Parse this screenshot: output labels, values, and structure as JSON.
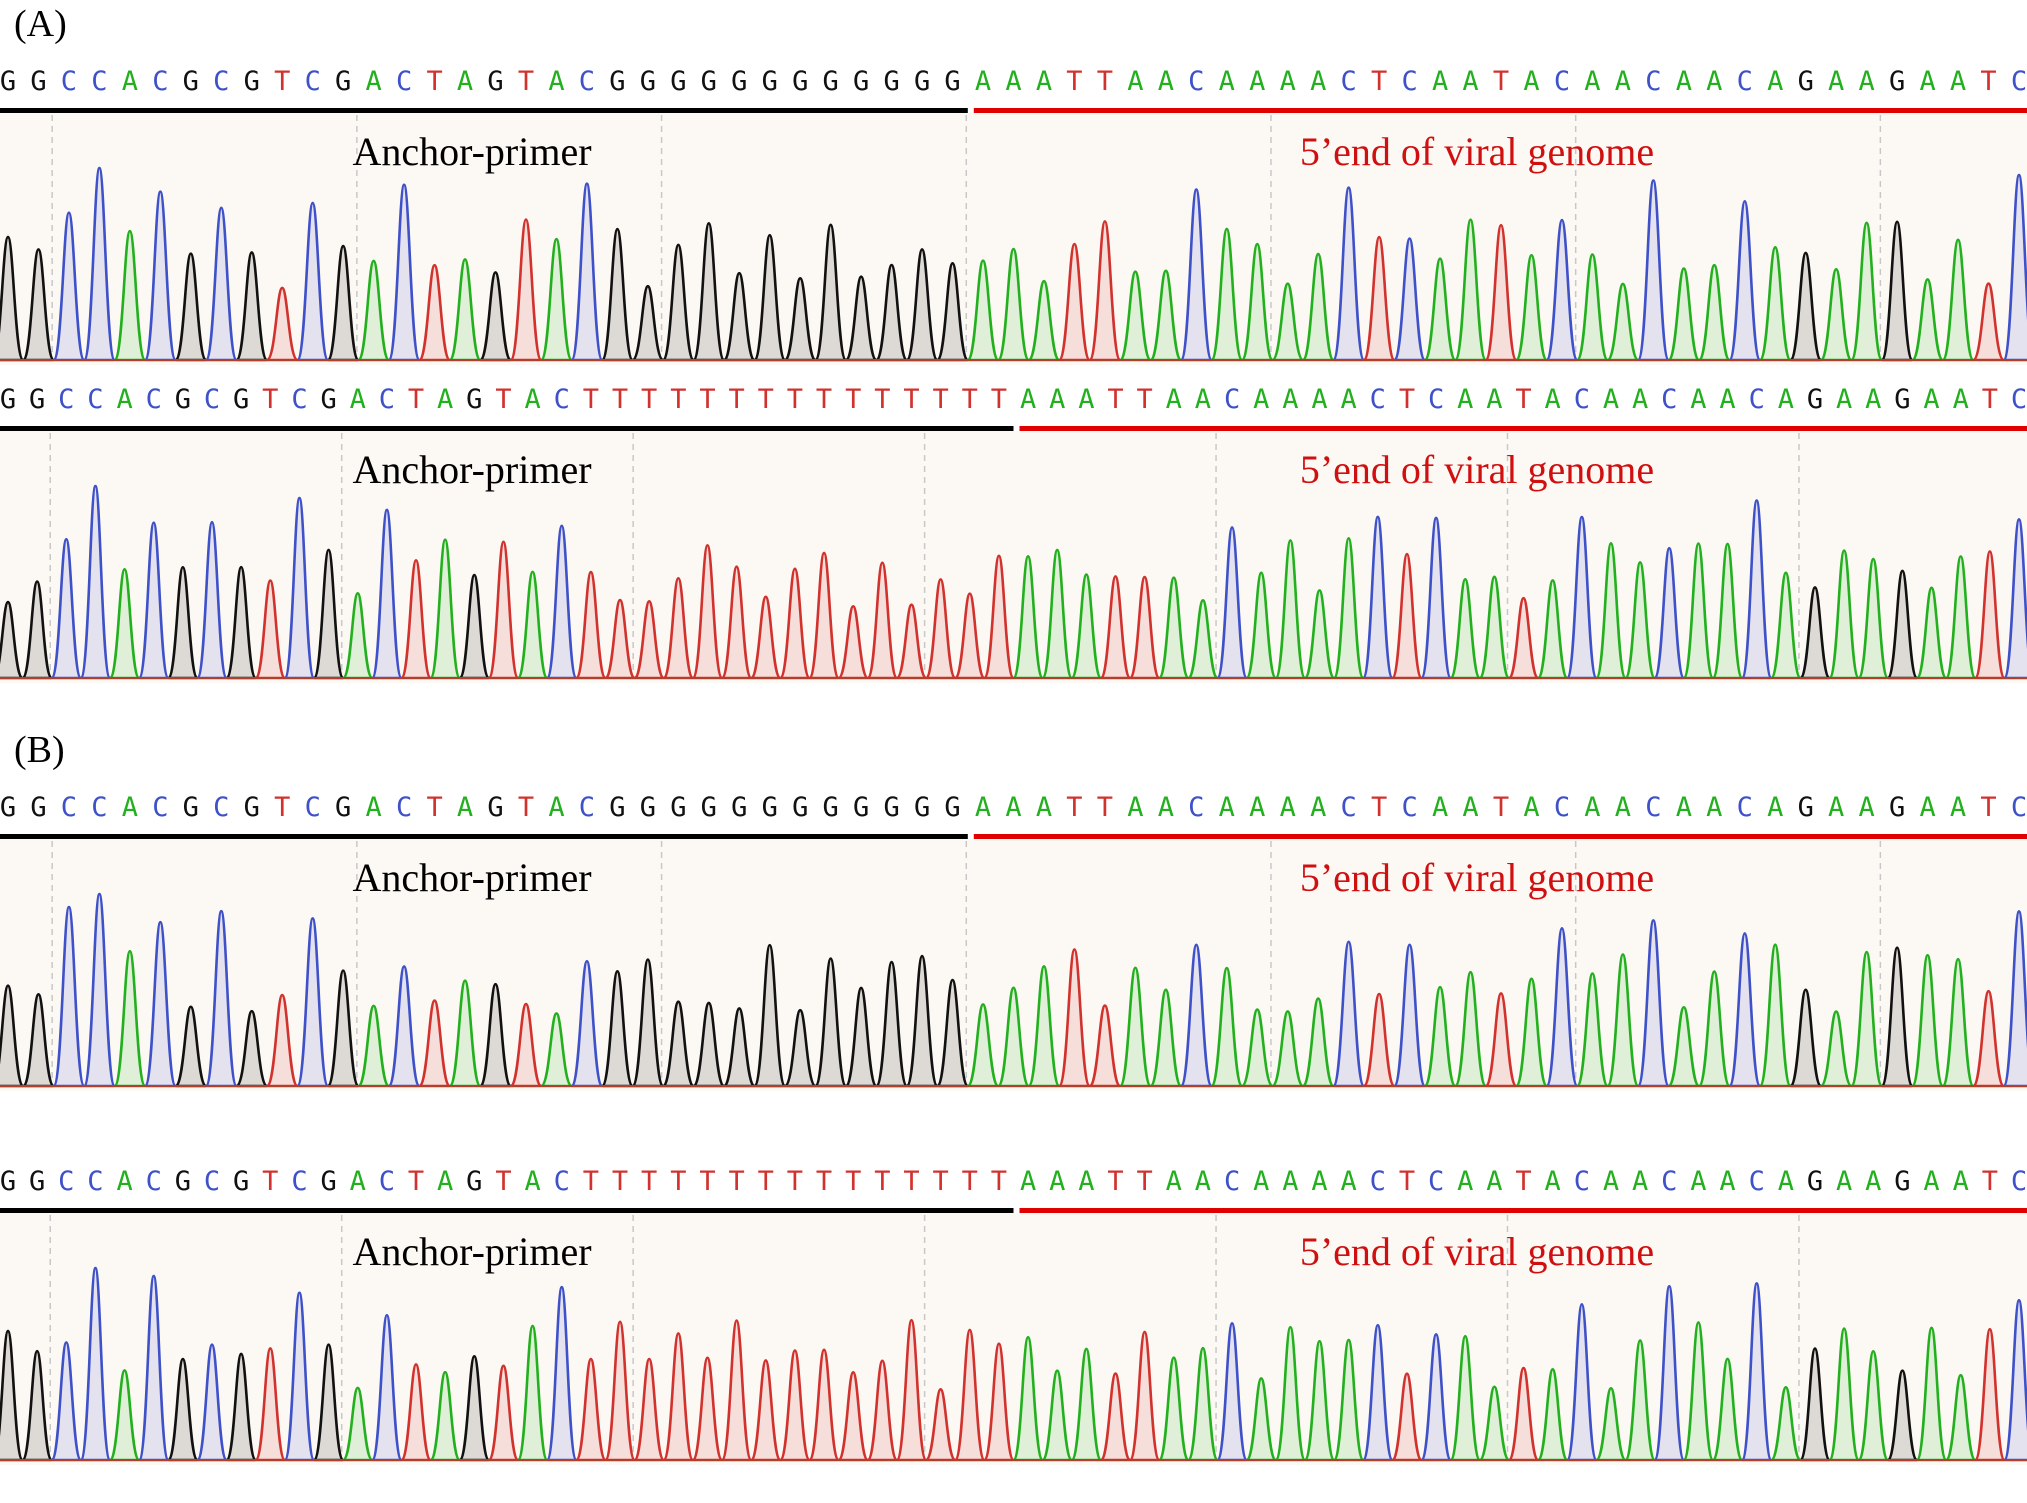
{
  "colors": {
    "A": "#23b01e",
    "C": "#3f51c8",
    "G": "#111111",
    "T": "#d2322d",
    "primer_line": "#000000",
    "genome_line": "#e00000",
    "bg": "#fcf9f4"
  },
  "panels": [
    {
      "label": "(A)",
      "tracks": [
        {
          "sequence": "GGCCACGCGTCGACTAGTACGGGGGGGGGGGGAAATTAACAAAACTCAATACAACAACAGAAGAATC",
          "primer_label": "Anchor-primer",
          "genome_label": "5’end of viral genome",
          "primer_length": 32
        },
        {
          "sequence": "GGCCACGCGTCGACTAGTACTTTTTTTTTTTTTTTAAATTAACAAAACTCAATACAACAACAGAAGAATC",
          "primer_label": "Anchor-primer",
          "genome_label": "5’end of viral genome",
          "primer_length": 35
        }
      ]
    },
    {
      "label": "(B)",
      "tracks": [
        {
          "sequence": "GGCCACGCGTCGACTAGTACGGGGGGGGGGGGAAATTAACAAAACTCAATACAACAACAGAAGAATC",
          "primer_label": "Anchor-primer",
          "genome_label": "5’end of viral genome",
          "primer_length": 32
        },
        {
          "sequence": "GGCCACGCGTCGACTAGTACTTTTTTTTTTTTTTTAAATTAACAAAACTCAATACAACAACAGAAGAATC",
          "primer_label": "Anchor-primer",
          "genome_label": "5’end of viral genome",
          "primer_length": 35
        }
      ]
    }
  ]
}
